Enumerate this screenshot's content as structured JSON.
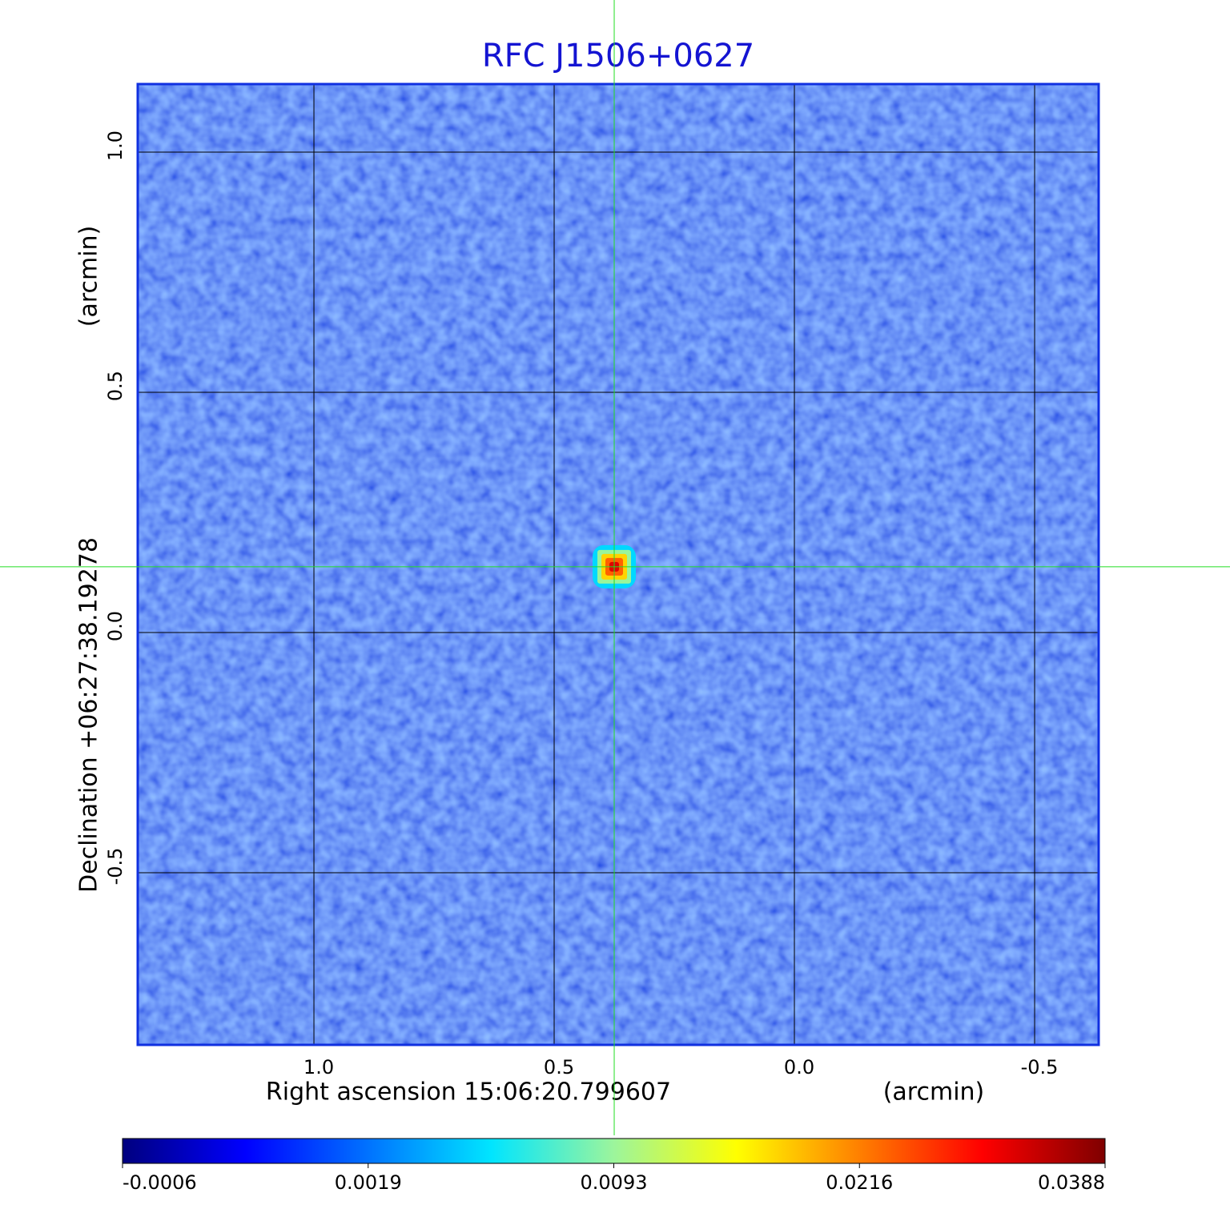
{
  "chart_data": {
    "type": "image",
    "title": "RFC J1506+0627",
    "x_label": "Right ascension  15:06:20.799607",
    "x_unit": "(arcmin)",
    "y_label": "Declination  +06:27:38.19278",
    "y_unit": "(arcmin)",
    "xlim": [
      1.3667,
      -0.6333
    ],
    "ylim": [
      -0.8583,
      1.1417
    ],
    "xticks": [
      {
        "value": 1.0,
        "label": "1.0"
      },
      {
        "value": 0.5,
        "label": "0.5"
      },
      {
        "value": 0,
        "label": "0.0"
      },
      {
        "value": -0.5,
        "label": "-0.5"
      }
    ],
    "yticks": [
      {
        "value": 1.0,
        "label": "1.0"
      },
      {
        "value": 0.5,
        "label": "0.5"
      },
      {
        "value": 0,
        "label": "0.0"
      },
      {
        "value": -0.5,
        "label": "-0.5"
      }
    ],
    "grid": true,
    "marker": {
      "x": 0.375,
      "y": 0.137,
      "value": 0.0388
    },
    "colormap": "jet",
    "colorbar_ticks": [
      -0.0006,
      0.0019,
      0.0093,
      0.0216,
      0.0388
    ]
  }
}
